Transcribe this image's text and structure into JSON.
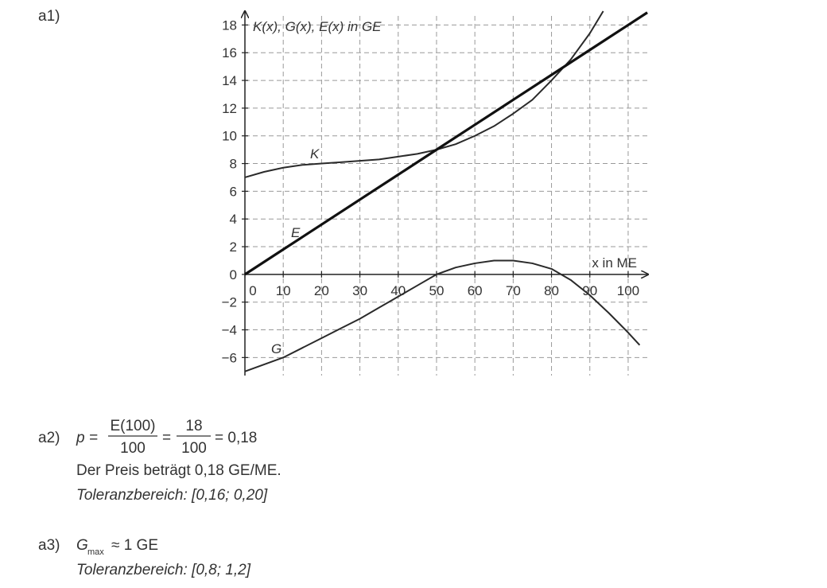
{
  "a1": {
    "label": "a1)"
  },
  "chart_data": {
    "type": "line",
    "x_label": "x in ME",
    "y_label": "K(x), G(x), E(x) in GE",
    "xlim": [
      0,
      105.2
    ],
    "ylim": [
      -7.3,
      19
    ],
    "xticks": [
      0,
      10,
      20,
      30,
      40,
      50,
      60,
      70,
      80,
      90,
      100
    ],
    "yticks": [
      {
        "value": -6,
        "label": "−6"
      },
      {
        "value": -4,
        "label": "−4"
      },
      {
        "value": -2,
        "label": "−2"
      },
      0,
      2,
      4,
      6,
      8,
      10,
      12,
      14,
      16,
      18
    ],
    "grid": true,
    "series": [
      {
        "name": "K",
        "color": "#2a2a2a",
        "x": [
          0,
          5,
          10,
          15,
          20,
          25,
          30,
          35,
          40,
          45,
          50,
          55,
          60,
          65,
          70,
          75,
          80,
          85,
          90,
          93.5
        ],
        "values": [
          7,
          7.4,
          7.7,
          7.9,
          8.0,
          8.1,
          8.2,
          8.3,
          8.5,
          8.7,
          9,
          9.4,
          10.0,
          10.7,
          11.6,
          12.6,
          14.0,
          15.5,
          17.4,
          19.0
        ]
      },
      {
        "name": "E",
        "color": "#111111",
        "x": [
          0,
          10,
          20,
          30,
          40,
          50,
          60,
          70,
          80,
          90,
          100,
          105
        ],
        "values": [
          0,
          1.8,
          3.6,
          5.4,
          7.2,
          9,
          10.8,
          12.6,
          14.4,
          16.2,
          18,
          18.9
        ]
      },
      {
        "name": "G",
        "color": "#2a2a2a",
        "x": [
          0,
          5,
          10,
          15,
          20,
          25,
          30,
          35,
          40,
          45,
          50,
          55,
          60,
          65,
          70,
          75,
          80,
          85,
          90,
          95,
          100,
          103
        ],
        "values": [
          -7,
          -6.5,
          -6.0,
          -5.3,
          -4.6,
          -3.9,
          -3.2,
          -2.4,
          -1.6,
          -0.8,
          0,
          0.5,
          0.8,
          1.0,
          1.0,
          0.8,
          0.4,
          -0.4,
          -1.5,
          -2.8,
          -4.2,
          -5.1
        ]
      }
    ]
  },
  "a2": {
    "label": "a2)",
    "lhs": "p =",
    "num1": "E(100)",
    "den1": "100",
    "eq": "=",
    "num2": "18",
    "den2": "100",
    "result": "= 0,18",
    "text": "Der Preis beträgt 0,18 GE/ME.",
    "tolerance": "Toleranzbereich: [0,16; 0,20]"
  },
  "a3": {
    "label": "a3)",
    "symbol": "G",
    "subscript": "max",
    "value": "≈ 1 GE",
    "tolerance": "Toleranzbereich: [0,8; 1,2]"
  }
}
